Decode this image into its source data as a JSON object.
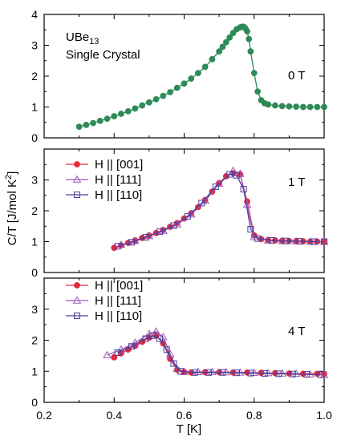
{
  "chart_data": {
    "type": "scatter",
    "xlabel": "T [K]",
    "ylabel": "C/T [J/mol K²]",
    "xlim": [
      0.2,
      1.0
    ],
    "xticks": [
      0.2,
      0.4,
      0.6,
      0.8,
      1.0
    ],
    "xtick_labels": [
      "0.2",
      "0.4",
      "0.6",
      "0.8",
      "1.0"
    ],
    "colors": {
      "h001": "#e8283c",
      "h111": "#9b59b6",
      "h110": "#4b3f9c",
      "zero": "#2e8b57"
    },
    "panels": [
      {
        "field_label": "0 T",
        "sample_label": [
          "UBe13",
          "Single Crystal"
        ],
        "ylim": [
          0,
          4
        ],
        "yticks": [
          0,
          1,
          2,
          3,
          4
        ],
        "series": [
          {
            "key": "zero",
            "marker": "circle-filled",
            "x": [
              0.3,
              0.32,
              0.34,
              0.36,
              0.38,
              0.4,
              0.42,
              0.44,
              0.46,
              0.48,
              0.5,
              0.52,
              0.54,
              0.56,
              0.58,
              0.6,
              0.62,
              0.64,
              0.66,
              0.68,
              0.7,
              0.71,
              0.72,
              0.73,
              0.74,
              0.75,
              0.76,
              0.765,
              0.77,
              0.775,
              0.78,
              0.785,
              0.79,
              0.8,
              0.81,
              0.82,
              0.83,
              0.84,
              0.86,
              0.88,
              0.9,
              0.92,
              0.94,
              0.96,
              0.98,
              1.0
            ],
            "y": [
              0.36,
              0.42,
              0.48,
              0.55,
              0.62,
              0.7,
              0.78,
              0.86,
              0.95,
              1.05,
              1.15,
              1.25,
              1.36,
              1.48,
              1.62,
              1.76,
              1.92,
              2.1,
              2.3,
              2.55,
              2.8,
              2.95,
              3.1,
              3.25,
              3.4,
              3.52,
              3.58,
              3.6,
              3.6,
              3.55,
              3.45,
              3.2,
              2.8,
              2.1,
              1.5,
              1.22,
              1.12,
              1.08,
              1.05,
              1.03,
              1.02,
              1.01,
              1.0,
              1.0,
              1.0,
              1.0
            ]
          }
        ]
      },
      {
        "field_label": "1 T",
        "ylim": [
          0,
          4
        ],
        "yticks": [
          0,
          1,
          2,
          3
        ],
        "legend": [
          {
            "key": "h001",
            "label": "H || [001]",
            "marker": "circle-filled"
          },
          {
            "key": "h111",
            "label": "H || [111]",
            "marker": "triangle-open"
          },
          {
            "key": "h110",
            "label": "H || [110]",
            "marker": "square-open"
          }
        ],
        "series": [
          {
            "key": "h001",
            "marker": "circle-filled",
            "x": [
              0.4,
              0.42,
              0.44,
              0.46,
              0.48,
              0.5,
              0.52,
              0.54,
              0.56,
              0.58,
              0.6,
              0.62,
              0.64,
              0.66,
              0.68,
              0.7,
              0.72,
              0.74,
              0.76,
              0.78,
              0.8,
              0.82,
              0.84,
              0.86,
              0.88,
              0.9,
              0.92,
              0.94,
              0.96,
              0.98,
              1.0
            ],
            "y": [
              0.8,
              0.88,
              0.96,
              1.04,
              1.12,
              1.2,
              1.28,
              1.38,
              1.48,
              1.6,
              1.75,
              1.92,
              2.12,
              2.35,
              2.62,
              2.9,
              3.12,
              3.22,
              3.18,
              2.3,
              1.2,
              1.08,
              1.05,
              1.04,
              1.03,
              1.02,
              1.02,
              1.01,
              1.0,
              1.0,
              1.0
            ]
          },
          {
            "key": "h111",
            "marker": "triangle-open",
            "x": [
              0.42,
              0.46,
              0.5,
              0.54,
              0.58,
              0.62,
              0.66,
              0.7,
              0.74,
              0.76,
              0.78,
              0.8,
              0.84,
              0.88,
              0.92,
              0.96,
              1.0
            ],
            "y": [
              0.9,
              1.02,
              1.18,
              1.35,
              1.56,
              1.88,
              2.32,
              2.88,
              3.3,
              3.2,
              2.2,
              1.15,
              1.04,
              1.02,
              1.01,
              1.0,
              1.0
            ]
          },
          {
            "key": "h110",
            "marker": "square-open",
            "x": [
              0.41,
              0.45,
              0.49,
              0.53,
              0.57,
              0.61,
              0.65,
              0.69,
              0.73,
              0.75,
              0.77,
              0.79,
              0.81,
              0.85,
              0.89,
              0.93,
              0.97,
              1.0
            ],
            "y": [
              0.85,
              0.98,
              1.14,
              1.32,
              1.52,
              1.82,
              2.25,
              2.78,
              3.18,
              3.15,
              2.7,
              1.4,
              1.1,
              1.04,
              1.02,
              1.01,
              1.0,
              1.0
            ]
          }
        ]
      },
      {
        "field_label": "4 T",
        "ylim": [
          0,
          4
        ],
        "yticks": [
          0,
          1,
          2,
          3
        ],
        "legend": [
          {
            "key": "h001",
            "label": "H || [001]",
            "marker": "circle-filled"
          },
          {
            "key": "h111",
            "label": "H || [111]",
            "marker": "triangle-open"
          },
          {
            "key": "h110",
            "label": "H || [110]",
            "marker": "square-open"
          }
        ],
        "series": [
          {
            "key": "h001",
            "marker": "circle-filled",
            "x": [
              0.4,
              0.42,
              0.44,
              0.46,
              0.48,
              0.5,
              0.52,
              0.54,
              0.56,
              0.58,
              0.6,
              0.62,
              0.66,
              0.7,
              0.74,
              0.78,
              0.82,
              0.86,
              0.9,
              0.94,
              0.98,
              1.0
            ],
            "y": [
              1.45,
              1.58,
              1.7,
              1.82,
              1.95,
              2.08,
              2.15,
              1.9,
              1.4,
              1.05,
              0.98,
              0.96,
              0.97,
              0.97,
              0.96,
              0.96,
              0.95,
              0.94,
              0.93,
              0.92,
              0.92,
              0.92
            ]
          },
          {
            "key": "h111",
            "marker": "triangle-open",
            "x": [
              0.38,
              0.42,
              0.46,
              0.5,
              0.52,
              0.54,
              0.56,
              0.58,
              0.6,
              0.64,
              0.68,
              0.72,
              0.76,
              0.8,
              0.84,
              0.88,
              0.92,
              0.96,
              1.0
            ],
            "y": [
              1.52,
              1.7,
              1.92,
              2.2,
              2.28,
              2.1,
              1.55,
              1.08,
              0.98,
              0.98,
              0.98,
              0.97,
              0.96,
              0.95,
              0.94,
              0.93,
              0.92,
              0.9,
              0.88
            ]
          },
          {
            "key": "h110",
            "marker": "square-open",
            "x": [
              0.41,
              0.45,
              0.49,
              0.51,
              0.53,
              0.55,
              0.57,
              0.59,
              0.63,
              0.67,
              0.71,
              0.75,
              0.79,
              0.83,
              0.87,
              0.91,
              0.95,
              0.99
            ],
            "y": [
              1.6,
              1.8,
              2.05,
              2.15,
              2.05,
              1.7,
              1.25,
              1.0,
              0.96,
              0.96,
              0.96,
              0.95,
              0.94,
              0.93,
              0.92,
              0.91,
              0.9,
              0.89
            ]
          }
        ]
      }
    ]
  }
}
